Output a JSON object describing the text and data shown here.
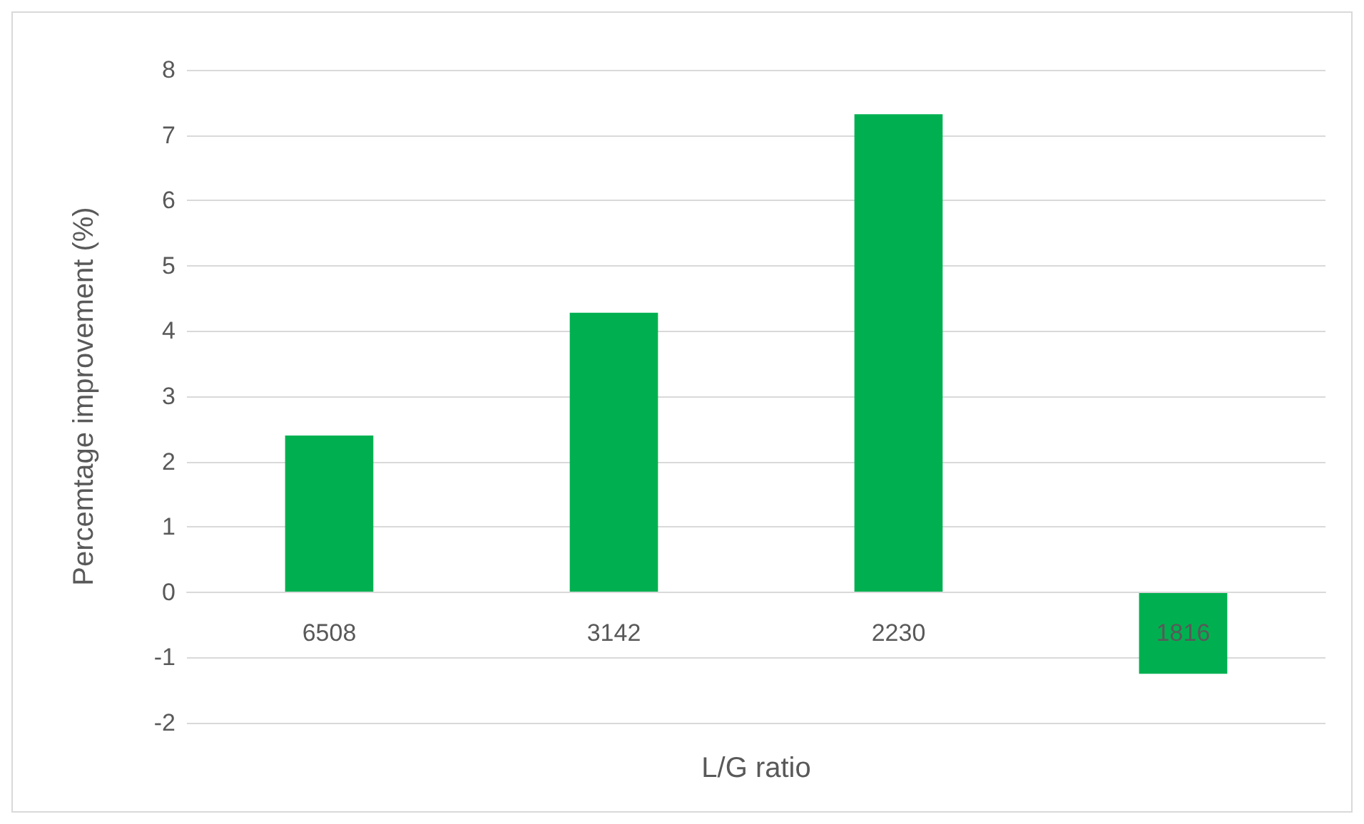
{
  "chart_data": {
    "type": "bar",
    "xlabel": "L/G ratio",
    "ylabel": "Percemtage improvement (%)",
    "categories": [
      "6508",
      "3142",
      "2230",
      "1816"
    ],
    "values": [
      2.4,
      4.28,
      7.32,
      -1.25
    ],
    "color": "#00b050",
    "ylim": [
      -2,
      8
    ],
    "yticks": [
      -2,
      -1,
      0,
      1,
      2,
      3,
      4,
      5,
      6,
      7,
      8
    ],
    "grid": "y"
  }
}
